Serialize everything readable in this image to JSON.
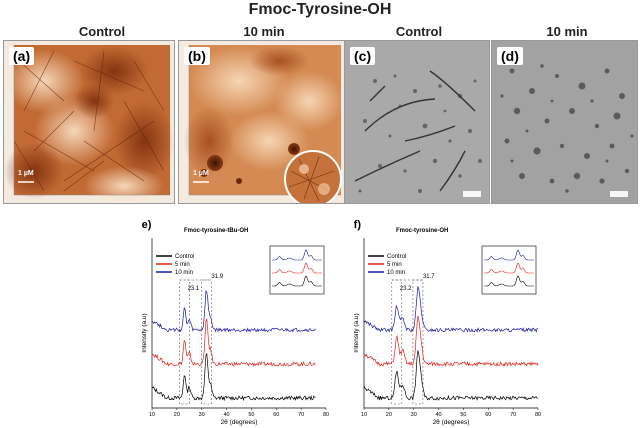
{
  "figure": {
    "title": "Fmoc-Tyrosine-OH",
    "column_heads": [
      "Control",
      "10 min",
      "Control",
      "10 min"
    ],
    "panels": [
      {
        "label": "(a)",
        "scale": "1 µM"
      },
      {
        "label": "(b)",
        "scale": "1 µM"
      },
      {
        "label": "(c)",
        "scale": ""
      },
      {
        "label": "(d)",
        "scale": ""
      }
    ]
  },
  "colors": {
    "afm_light": "#f3d4b8",
    "afm_mid": "#c9733e",
    "afm_dark": "#6b2508",
    "tem_bg": "#a9a9a9",
    "control": "#000000",
    "min5": "#e32119",
    "min10": "#1a1aa8"
  },
  "chart_data": [
    {
      "type": "line",
      "panel_label": "(e)",
      "title": "Fmoc-tyrosine-tBu-OH",
      "xlabel": "2θ (degrees)",
      "ylabel": "Intensity (a.u)",
      "xlim": [
        10,
        80
      ],
      "xticks": [
        10,
        20,
        30,
        40,
        50,
        60,
        70,
        80
      ],
      "legend_position": "top-left",
      "series": [
        {
          "name": "Control",
          "color": "#000000",
          "offset": 0
        },
        {
          "name": "5 min",
          "color": "#e32119",
          "offset": 1
        },
        {
          "name": "10 min",
          "color": "#1a1aa8",
          "offset": 2
        }
      ],
      "peaks": [
        {
          "x": 23.1,
          "h": 0.55,
          "w": 0.5
        },
        {
          "x": 25.0,
          "h": 0.25,
          "w": 0.6
        },
        {
          "x": 31.9,
          "h": 1.0,
          "w": 0.6
        },
        {
          "x": 33.5,
          "h": 0.3,
          "w": 0.6
        }
      ],
      "annotations": [
        {
          "text": "23.1",
          "x": 23.1
        },
        {
          "text": "31.9",
          "x": 31.9
        }
      ]
    },
    {
      "type": "line",
      "panel_label": "(f)",
      "title": "Fmoc-tyrosine-OH",
      "xlabel": "2θ (degrees)",
      "ylabel": "Intensity (a.u)",
      "xlim": [
        10,
        80
      ],
      "xticks": [
        10,
        20,
        30,
        40,
        50,
        60,
        70,
        80
      ],
      "legend_position": "top-left",
      "series": [
        {
          "name": "Control",
          "color": "#000000",
          "offset": 0
        },
        {
          "name": "5 min",
          "color": "#e32119",
          "offset": 1
        },
        {
          "name": "10 min",
          "color": "#1a1aa8",
          "offset": 2
        }
      ],
      "peaks": [
        {
          "x": 23.2,
          "h": 0.6,
          "w": 0.7
        },
        {
          "x": 25.5,
          "h": 0.3,
          "w": 0.8
        },
        {
          "x": 31.7,
          "h": 1.0,
          "w": 0.7
        },
        {
          "x": 33.0,
          "h": 0.35,
          "w": 0.7
        }
      ],
      "annotations": [
        {
          "text": "23.2",
          "x": 23.2
        },
        {
          "text": "31.7",
          "x": 31.7
        }
      ]
    }
  ]
}
